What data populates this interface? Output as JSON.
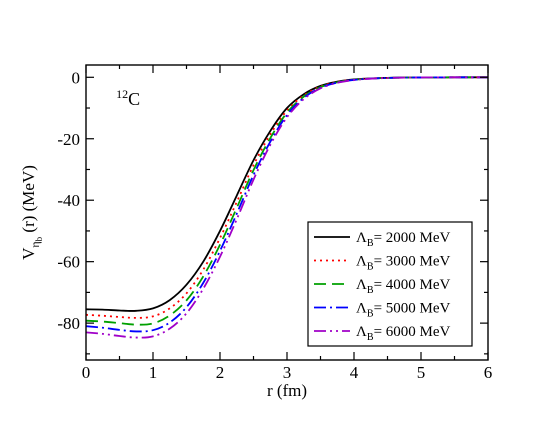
{
  "chart_data": {
    "type": "line",
    "title": "",
    "annotation": {
      "sup": "12",
      "main": "C"
    },
    "xlabel": "r  (fm)",
    "ylabel": {
      "main": "V",
      "sub": "η",
      "subsub": "b",
      "rest": " (r)  (MeV)"
    },
    "xlim": [
      0,
      6
    ],
    "ylim": [
      -92,
      4
    ],
    "x_ticks": [
      0,
      1,
      2,
      3,
      4,
      5,
      6
    ],
    "y_ticks": [
      0,
      -20,
      -40,
      -60,
      -80
    ],
    "grid": false,
    "legend_position": "lower-right",
    "x": [
      0,
      0.25,
      0.5,
      0.75,
      1.0,
      1.25,
      1.5,
      1.75,
      2.0,
      2.25,
      2.5,
      2.75,
      3.0,
      3.25,
      3.5,
      3.75,
      4.0,
      4.25,
      4.5,
      4.75,
      5.0,
      5.5,
      6.0
    ],
    "series": [
      {
        "name": "Λ_B = 2000 MeV",
        "legend_main": "Λ",
        "legend_sub": "B",
        "legend_rest": "= 2000 MeV",
        "color": "#000000",
        "dash": "",
        "values": [
          -75.5,
          -75.6,
          -75.9,
          -76.0,
          -75.2,
          -72.5,
          -67.5,
          -60.0,
          -50.0,
          -38.5,
          -27.0,
          -17.5,
          -10.0,
          -5.5,
          -2.8,
          -1.4,
          -0.7,
          -0.35,
          -0.18,
          -0.09,
          -0.05,
          -0.01,
          0
        ]
      },
      {
        "name": "Λ_B = 3000 MeV",
        "legend_main": "Λ",
        "legend_sub": "B",
        "legend_rest": "= 3000 MeV",
        "color": "#ff0000",
        "dash": "2,4",
        "values": [
          -77.3,
          -77.6,
          -78.0,
          -78.3,
          -77.8,
          -75.2,
          -70.3,
          -62.6,
          -52.3,
          -40.6,
          -28.6,
          -18.6,
          -10.8,
          -5.9,
          -3.0,
          -1.5,
          -0.75,
          -0.37,
          -0.19,
          -0.1,
          -0.05,
          -0.01,
          0
        ]
      },
      {
        "name": "Λ_B = 4000 MeV",
        "legend_main": "Λ",
        "legend_sub": "B",
        "legend_rest": "= 4000 MeV",
        "color": "#00a000",
        "dash": "12,6",
        "values": [
          -79.2,
          -79.5,
          -80.0,
          -80.5,
          -80.1,
          -77.5,
          -72.6,
          -64.8,
          -54.5,
          -42.5,
          -30.2,
          -19.8,
          -11.5,
          -6.3,
          -3.2,
          -1.6,
          -0.8,
          -0.4,
          -0.2,
          -0.1,
          -0.05,
          -0.01,
          0
        ]
      },
      {
        "name": "Λ_B = 5000 MeV",
        "legend_main": "Λ",
        "legend_sub": "B",
        "legend_rest": "= 5000 MeV",
        "color": "#0000ff",
        "dash": "12,4,2,4",
        "values": [
          -81.0,
          -81.5,
          -82.2,
          -82.7,
          -82.3,
          -79.8,
          -74.8,
          -66.9,
          -56.5,
          -44.4,
          -31.8,
          -21.0,
          -12.3,
          -6.7,
          -3.4,
          -1.7,
          -0.85,
          -0.42,
          -0.21,
          -0.1,
          -0.05,
          -0.01,
          0
        ]
      },
      {
        "name": "Λ_B = 6000 MeV",
        "legend_main": "Λ",
        "legend_sub": "B",
        "legend_rest": "= 6000 MeV",
        "color": "#a000c8",
        "dash": "12,4,2,4,2,4",
        "values": [
          -83.0,
          -83.5,
          -84.2,
          -84.7,
          -84.3,
          -81.8,
          -76.8,
          -68.8,
          -58.4,
          -46.2,
          -33.3,
          -22.0,
          -13.0,
          -7.1,
          -3.6,
          -1.8,
          -0.9,
          -0.45,
          -0.22,
          -0.11,
          -0.05,
          -0.01,
          0
        ]
      }
    ]
  }
}
